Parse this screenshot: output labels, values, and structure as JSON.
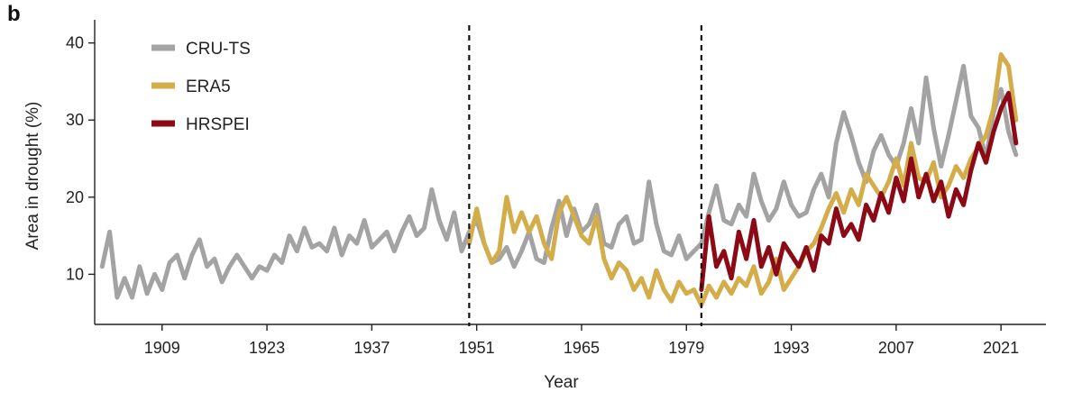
{
  "panel_label": "b",
  "chart_data": {
    "type": "line",
    "xlabel": "Year",
    "ylabel": "Area in drought (%)",
    "x_ticks": [
      1909,
      1923,
      1937,
      1951,
      1965,
      1979,
      1993,
      2007,
      2021
    ],
    "y_ticks": [
      10,
      20,
      30,
      40
    ],
    "xlim": [
      1900,
      2027
    ],
    "ylim": [
      3.5,
      43
    ],
    "grid": false,
    "legend_position": "top-left",
    "reference_lines": [
      1950,
      1981
    ],
    "colors": {
      "CRU-TS": "#a3a3a3",
      "ERA5": "#d4ad4b",
      "HRSPEI": "#8b0a16"
    },
    "series": [
      {
        "name": "CRU-TS",
        "points": [
          [
            1901,
            11
          ],
          [
            1902,
            15.5
          ],
          [
            1903,
            7
          ],
          [
            1904,
            9.5
          ],
          [
            1905,
            7
          ],
          [
            1906,
            11
          ],
          [
            1907,
            7.5
          ],
          [
            1908,
            10
          ],
          [
            1909,
            8
          ],
          [
            1910,
            11.5
          ],
          [
            1911,
            12.5
          ],
          [
            1912,
            9.5
          ],
          [
            1913,
            12.5
          ],
          [
            1914,
            14.5
          ],
          [
            1915,
            11
          ],
          [
            1916,
            12
          ],
          [
            1917,
            9
          ],
          [
            1918,
            11
          ],
          [
            1919,
            12.5
          ],
          [
            1920,
            11
          ],
          [
            1921,
            9.5
          ],
          [
            1922,
            11
          ],
          [
            1923,
            10.5
          ],
          [
            1924,
            12.5
          ],
          [
            1925,
            11.5
          ],
          [
            1926,
            15
          ],
          [
            1927,
            13
          ],
          [
            1928,
            16
          ],
          [
            1929,
            13.5
          ],
          [
            1930,
            14
          ],
          [
            1931,
            13
          ],
          [
            1932,
            16
          ],
          [
            1933,
            12.5
          ],
          [
            1934,
            15
          ],
          [
            1935,
            14
          ],
          [
            1936,
            17
          ],
          [
            1937,
            13.5
          ],
          [
            1938,
            14.5
          ],
          [
            1939,
            15.5
          ],
          [
            1940,
            13
          ],
          [
            1941,
            15.5
          ],
          [
            1942,
            17.5
          ],
          [
            1943,
            15
          ],
          [
            1944,
            16
          ],
          [
            1945,
            21
          ],
          [
            1946,
            17
          ],
          [
            1947,
            14.5
          ],
          [
            1948,
            18
          ],
          [
            1949,
            13
          ],
          [
            1950,
            15.5
          ],
          [
            1951,
            17
          ],
          [
            1952,
            14
          ],
          [
            1953,
            11.5
          ],
          [
            1954,
            12
          ],
          [
            1955,
            13.5
          ],
          [
            1956,
            11
          ],
          [
            1957,
            13
          ],
          [
            1958,
            15.5
          ],
          [
            1959,
            12
          ],
          [
            1960,
            11.5
          ],
          [
            1961,
            16
          ],
          [
            1962,
            19.5
          ],
          [
            1963,
            15
          ],
          [
            1964,
            18.5
          ],
          [
            1965,
            15.5
          ],
          [
            1966,
            16.5
          ],
          [
            1967,
            19
          ],
          [
            1968,
            14
          ],
          [
            1969,
            13.5
          ],
          [
            1970,
            16.5
          ],
          [
            1971,
            17.5
          ],
          [
            1972,
            14
          ],
          [
            1973,
            14.5
          ],
          [
            1974,
            22
          ],
          [
            1975,
            16.5
          ],
          [
            1976,
            13
          ],
          [
            1977,
            12.5
          ],
          [
            1978,
            15
          ],
          [
            1979,
            12
          ],
          [
            1980,
            13
          ],
          [
            1981,
            14
          ],
          [
            1982,
            18
          ],
          [
            1983,
            21.5
          ],
          [
            1984,
            17
          ],
          [
            1985,
            16.5
          ],
          [
            1986,
            19
          ],
          [
            1987,
            17.5
          ],
          [
            1988,
            23
          ],
          [
            1989,
            19.5
          ],
          [
            1990,
            17
          ],
          [
            1991,
            18.5
          ],
          [
            1992,
            22
          ],
          [
            1993,
            19
          ],
          [
            1994,
            17.5
          ],
          [
            1995,
            18
          ],
          [
            1996,
            21
          ],
          [
            1997,
            23
          ],
          [
            1998,
            20
          ],
          [
            1999,
            27
          ],
          [
            2000,
            31
          ],
          [
            2001,
            28
          ],
          [
            2002,
            24.5
          ],
          [
            2003,
            22
          ],
          [
            2004,
            26
          ],
          [
            2005,
            28
          ],
          [
            2006,
            25.5
          ],
          [
            2007,
            24
          ],
          [
            2008,
            27
          ],
          [
            2009,
            31.5
          ],
          [
            2010,
            27
          ],
          [
            2011,
            35.5
          ],
          [
            2012,
            29
          ],
          [
            2013,
            24
          ],
          [
            2014,
            28
          ],
          [
            2015,
            32.5
          ],
          [
            2016,
            37
          ],
          [
            2017,
            30.5
          ],
          [
            2018,
            29
          ],
          [
            2019,
            25
          ],
          [
            2020,
            31
          ],
          [
            2021,
            34
          ],
          [
            2022,
            28.5
          ],
          [
            2023,
            25.5
          ]
        ]
      },
      {
        "name": "ERA5",
        "points": [
          [
            1950,
            14
          ],
          [
            1951,
            18.5
          ],
          [
            1952,
            14
          ],
          [
            1953,
            11.5
          ],
          [
            1954,
            13
          ],
          [
            1955,
            20
          ],
          [
            1956,
            15.5
          ],
          [
            1957,
            18
          ],
          [
            1958,
            15.5
          ],
          [
            1959,
            17.5
          ],
          [
            1960,
            14
          ],
          [
            1961,
            12
          ],
          [
            1962,
            18
          ],
          [
            1963,
            20
          ],
          [
            1964,
            17.5
          ],
          [
            1965,
            15
          ],
          [
            1966,
            14
          ],
          [
            1967,
            17.5
          ],
          [
            1968,
            12
          ],
          [
            1969,
            9.5
          ],
          [
            1970,
            11.5
          ],
          [
            1971,
            10.5
          ],
          [
            1972,
            8
          ],
          [
            1973,
            9.5
          ],
          [
            1974,
            7
          ],
          [
            1975,
            10.5
          ],
          [
            1976,
            8
          ],
          [
            1977,
            6.5
          ],
          [
            1978,
            9
          ],
          [
            1979,
            7.5
          ],
          [
            1980,
            8
          ],
          [
            1981,
            6
          ],
          [
            1982,
            8.5
          ],
          [
            1983,
            7
          ],
          [
            1984,
            9
          ],
          [
            1985,
            7.5
          ],
          [
            1986,
            9.5
          ],
          [
            1987,
            8.5
          ],
          [
            1988,
            11
          ],
          [
            1989,
            7.5
          ],
          [
            1990,
            9
          ],
          [
            1991,
            12
          ],
          [
            1992,
            8
          ],
          [
            1993,
            9.5
          ],
          [
            1994,
            11
          ],
          [
            1995,
            13
          ],
          [
            1996,
            14
          ],
          [
            1997,
            16
          ],
          [
            1998,
            18.5
          ],
          [
            1999,
            20.5
          ],
          [
            2000,
            18
          ],
          [
            2001,
            21
          ],
          [
            2002,
            19
          ],
          [
            2003,
            23
          ],
          [
            2004,
            21.5
          ],
          [
            2005,
            20
          ],
          [
            2006,
            22
          ],
          [
            2007,
            25
          ],
          [
            2008,
            21.5
          ],
          [
            2009,
            27
          ],
          [
            2010,
            22.5
          ],
          [
            2011,
            22
          ],
          [
            2012,
            24.5
          ],
          [
            2013,
            20
          ],
          [
            2014,
            21.5
          ],
          [
            2015,
            24
          ],
          [
            2016,
            22.5
          ],
          [
            2017,
            25
          ],
          [
            2018,
            26.5
          ],
          [
            2019,
            28
          ],
          [
            2020,
            31.5
          ],
          [
            2021,
            38.5
          ],
          [
            2022,
            37
          ],
          [
            2023,
            30
          ]
        ]
      },
      {
        "name": "HRSPEI",
        "points": [
          [
            1981,
            8
          ],
          [
            1982,
            17.5
          ],
          [
            1983,
            11
          ],
          [
            1984,
            13
          ],
          [
            1985,
            9.5
          ],
          [
            1986,
            15.5
          ],
          [
            1987,
            12
          ],
          [
            1988,
            17
          ],
          [
            1989,
            11
          ],
          [
            1990,
            13.5
          ],
          [
            1991,
            10
          ],
          [
            1992,
            14
          ],
          [
            1993,
            12.5
          ],
          [
            1994,
            11
          ],
          [
            1995,
            13.5
          ],
          [
            1996,
            10.5
          ],
          [
            1997,
            15
          ],
          [
            1998,
            14
          ],
          [
            1999,
            18.5
          ],
          [
            2000,
            15
          ],
          [
            2001,
            16.5
          ],
          [
            2002,
            14.5
          ],
          [
            2003,
            19
          ],
          [
            2004,
            17
          ],
          [
            2005,
            20.5
          ],
          [
            2006,
            18
          ],
          [
            2007,
            22.5
          ],
          [
            2008,
            19.5
          ],
          [
            2009,
            25
          ],
          [
            2010,
            20
          ],
          [
            2011,
            23
          ],
          [
            2012,
            19.5
          ],
          [
            2013,
            22
          ],
          [
            2014,
            17.5
          ],
          [
            2015,
            21
          ],
          [
            2016,
            19
          ],
          [
            2017,
            23.5
          ],
          [
            2018,
            27
          ],
          [
            2019,
            24.5
          ],
          [
            2020,
            28.5
          ],
          [
            2021,
            31.5
          ],
          [
            2022,
            33.5
          ],
          [
            2023,
            27
          ]
        ]
      }
    ]
  }
}
